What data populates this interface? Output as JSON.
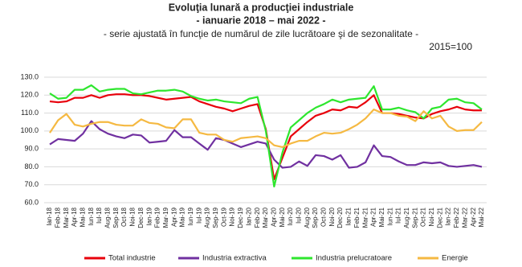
{
  "chart_data": {
    "type": "line",
    "title": "Evoluţia lunară a producţiei industriale",
    "subtitle": "- ianuarie 2018 – mai 2022 -",
    "note": "- serie ajustată în funcţie de numărul de zile lucrătoare şi de sezonalitate -",
    "base": "2015=100",
    "categories": [
      "Ian-18",
      "Feb-18",
      "Mar-18",
      "Apr-18",
      "Mai-18",
      "Iun-18",
      "Iul-18",
      "Aug-18",
      "Sep-18",
      "Oct-18",
      "Noi-18",
      "Dec-18",
      "Ian-19",
      "Feb-19",
      "Mar-19",
      "Apr-19",
      "Mai-19",
      "Iun-19",
      "Iul-19",
      "Aug-19",
      "Sep-19",
      "Oct-19",
      "Noi-19",
      "Dec-19",
      "Ian-20",
      "Feb-20",
      "Mar-20",
      "Apr-20",
      "Mai-20",
      "Iun-20",
      "Iul-20",
      "Aug-20",
      "Sep-20",
      "Oct-20",
      "Noi-20",
      "Dec-20",
      "Ian-21",
      "Feb-21",
      "Mar-21",
      "Apr-21",
      "Mai-21",
      "Iun-21",
      "Iul-21",
      "Aug-21",
      "Sep-21",
      "Oct-21",
      "Noi-21",
      "Dec-21",
      "Ian-22",
      "Feb-22",
      "Mar-22",
      "Apr-22",
      "Mai-22"
    ],
    "series": [
      {
        "name": "Total industrie",
        "color": "#e8000b",
        "values": [
          116.5,
          116,
          116.5,
          118.5,
          118.5,
          120,
          118.5,
          120,
          120.5,
          120.5,
          120,
          120,
          119.5,
          118.5,
          117.5,
          118,
          118.5,
          119,
          116.5,
          115,
          113.5,
          112.5,
          111,
          112.5,
          114,
          115,
          101,
          73,
          85,
          97,
          101,
          105,
          108.5,
          110,
          112,
          111.5,
          113.5,
          113,
          116,
          120,
          110,
          110,
          109.5,
          108.5,
          107.5,
          107,
          109.5,
          111,
          112,
          113.5,
          112,
          111.5,
          111.5
        ]
      },
      {
        "name": "Industria extractiva",
        "color": "#7030a0",
        "values": [
          92.5,
          95.5,
          95,
          94.5,
          98.5,
          105.5,
          101,
          98.5,
          97,
          96,
          98,
          97.5,
          93.5,
          94,
          94.5,
          100.5,
          96.5,
          96.5,
          93,
          89.5,
          96,
          95,
          93,
          91,
          92.5,
          94,
          93,
          84,
          79.5,
          80,
          83,
          80.5,
          86.5,
          86,
          84,
          86.5,
          79.5,
          80,
          82.5,
          92,
          86,
          85.5,
          83,
          81,
          81,
          82.5,
          82,
          82.5,
          80.5,
          80,
          80.5,
          81,
          80
        ]
      },
      {
        "name": "Industria prelucratoare",
        "color": "#2ee62e",
        "values": [
          121,
          118,
          118.5,
          123,
          123,
          125.5,
          122,
          123,
          123.5,
          123.5,
          121,
          120.5,
          121.5,
          122.5,
          122.5,
          123,
          122,
          119.5,
          118,
          117,
          117.5,
          116.5,
          116,
          115.5,
          118,
          119,
          100,
          69,
          88,
          102,
          106,
          110,
          113,
          115,
          117.5,
          116,
          117.5,
          118,
          118.5,
          125,
          112,
          112,
          113,
          111.5,
          110.5,
          107,
          112.5,
          113.5,
          117.5,
          118,
          116,
          115.5,
          112
        ]
      },
      {
        "name": "Energie",
        "color": "#f5b942",
        "values": [
          99,
          106,
          109.5,
          103.5,
          102.5,
          104,
          105,
          105,
          103.5,
          103,
          103,
          106.5,
          104.5,
          104,
          102,
          101.5,
          106.5,
          106.5,
          99,
          98,
          98,
          95,
          94,
          96,
          96.5,
          97,
          96,
          92,
          91,
          93,
          94.5,
          94.5,
          97,
          99,
          98.5,
          99,
          101,
          103.5,
          107,
          112,
          110,
          110,
          108.5,
          108,
          105.5,
          111,
          107,
          108.5,
          102.5,
          100,
          100.5,
          100.5,
          105
        ]
      }
    ],
    "ylim": [
      60,
      130
    ],
    "yticks": [
      {
        "value": 60,
        "label": "60.0"
      },
      {
        "value": 70,
        "label": "70.0"
      },
      {
        "value": 80,
        "label": "80.0"
      },
      {
        "value": 90,
        "label": "90.0"
      },
      {
        "value": 100,
        "label": "100.0"
      },
      {
        "value": 110,
        "label": "110.0"
      },
      {
        "value": 120,
        "label": "120.0"
      },
      {
        "value": 130,
        "label": "130.0"
      }
    ],
    "grid": true
  }
}
